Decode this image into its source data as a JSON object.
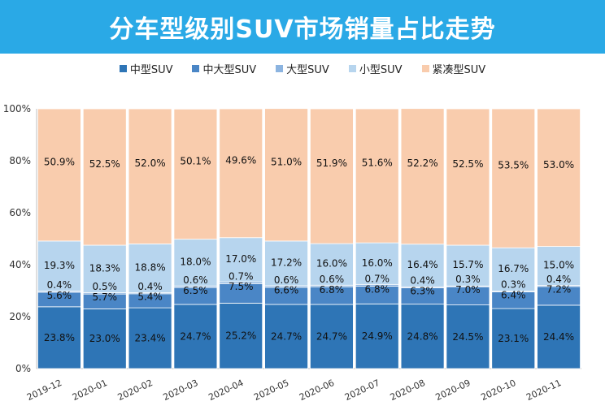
{
  "title": "分车型级别SUV市场销量占比走势",
  "colors": {
    "title_bg": "#2aa9e6",
    "axis": "#bfbfbf"
  },
  "chart_data": {
    "type": "bar",
    "stacked": true,
    "percent": true,
    "categories": [
      "2019-12",
      "2020-01",
      "2020-02",
      "2020-03",
      "2020-04",
      "2020-05",
      "2020-06",
      "2020-07",
      "2020-08",
      "2020-09",
      "2020-10",
      "2020-11"
    ],
    "ylim": [
      0,
      100
    ],
    "yticks": [
      "0%",
      "20%",
      "40%",
      "60%",
      "80%",
      "100%"
    ],
    "legend_position": "top",
    "grid": false,
    "series": [
      {
        "name": "中型SUV",
        "color": "#2e75b6",
        "values": [
          23.8,
          23.0,
          23.4,
          24.7,
          25.2,
          24.7,
          24.7,
          24.9,
          24.8,
          24.5,
          23.1,
          24.4
        ],
        "labels": [
          "23.8%",
          "23.0%",
          "23.4%",
          "24.7%",
          "25.2%",
          "24.7%",
          "24.7%",
          "24.9%",
          "24.8%",
          "24.5%",
          "23.1%",
          "24.4%"
        ]
      },
      {
        "name": "中大型SUV",
        "color": "#4a86c6",
        "values": [
          5.6,
          5.7,
          5.4,
          6.5,
          7.5,
          6.6,
          6.8,
          6.8,
          6.3,
          7.0,
          6.4,
          7.2
        ],
        "labels": [
          "5.6%",
          "5.7%",
          "5.4%",
          "6.5%",
          "7.5%",
          "6.6%",
          "6.8%",
          "6.8%",
          "6.3%",
          "7.0%",
          "6.4%",
          "7.2%"
        ]
      },
      {
        "name": "大型SUV",
        "color": "#8cb4e0",
        "values": [
          0.4,
          0.5,
          0.4,
          0.6,
          0.7,
          0.6,
          0.6,
          0.7,
          0.4,
          0.3,
          0.3,
          0.4
        ],
        "labels": [
          "0.4%",
          "0.5%",
          "0.4%",
          "0.6%",
          "0.7%",
          "0.6%",
          "0.6%",
          "0.7%",
          "0.4%",
          "0.3%",
          "0.3%",
          "0.4%"
        ]
      },
      {
        "name": "小型SUV",
        "color": "#b7d5ee",
        "values": [
          19.3,
          18.3,
          18.8,
          18.0,
          17.0,
          17.2,
          16.0,
          16.0,
          16.4,
          15.7,
          16.7,
          15.0
        ],
        "labels": [
          "19.3%",
          "18.3%",
          "18.8%",
          "18.0%",
          "17.0%",
          "17.2%",
          "16.0%",
          "16.0%",
          "16.4%",
          "15.7%",
          "16.7%",
          "15.0%"
        ]
      },
      {
        "name": "紧凑型SUV",
        "color": "#f9ccad",
        "values": [
          50.9,
          52.5,
          52.0,
          50.1,
          49.6,
          51.0,
          51.9,
          51.6,
          52.2,
          52.5,
          53.5,
          53.0
        ],
        "labels": [
          "50.9%",
          "52.5%",
          "52.0%",
          "50.1%",
          "49.6%",
          "51.0%",
          "51.9%",
          "51.6%",
          "52.2%",
          "52.5%",
          "53.5%",
          "53.0%"
        ]
      }
    ]
  }
}
